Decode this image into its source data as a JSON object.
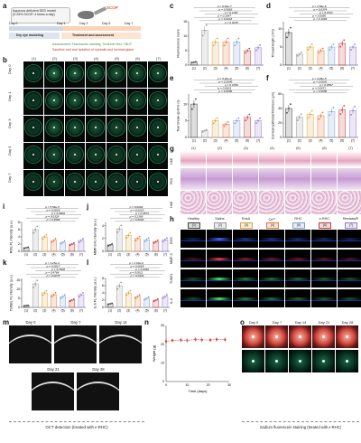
{
  "panel_labels": [
    "a",
    "b",
    "c",
    "d",
    "e",
    "f",
    "g",
    "h",
    "i",
    "j",
    "k",
    "l",
    "m",
    "n",
    "o"
  ],
  "a": {
    "title": "Aqueous deficient DED model",
    "subtitle": "(0.25% SCOP, 4 times a day)",
    "drug": "SCOP",
    "days": [
      "Day 0",
      "Day 1",
      "Day 3",
      "Day 5",
      "Day 7"
    ],
    "phase1": "Dry eye modeling",
    "phase2": "Treatment and assessment",
    "legend1": "Assessment: Fluorescein staining, Schirmer test, TBUT",
    "legend2": "Sacrifice and and isolation of eyeballs and lacrimal gland"
  },
  "b": {
    "groups": [
      "(1)",
      "(2)",
      "(3)",
      "(4)",
      "(5)",
      "(6)",
      "(7)"
    ],
    "rows": [
      "Day 0",
      "Day 1",
      "Day 3",
      "Day 5",
      "Day 7"
    ]
  },
  "c": {
    "ylabel": "Fluorescence score",
    "ticks": [
      "0",
      "5",
      "10",
      "15"
    ],
    "groups": [
      "(1)",
      "(2)",
      "(3)",
      "(4)",
      "(5)",
      "(6)",
      "(7)"
    ],
    "pvals": [
      "p = 8.49e-7",
      "p = 0.5663",
      "p = 0.1047",
      "p = 0.1047",
      "p = 0.0218",
      "p = 0.0018"
    ]
  },
  "d": {
    "ylabel": "Thread length (mm)",
    "ticks": [
      "0",
      "5",
      "10"
    ],
    "groups": [
      "(1)",
      "(2)",
      "(3)",
      "(4)",
      "(5)",
      "(6)",
      "(7)"
    ],
    "pvals": [
      "p = 2.56e-6",
      "p = 0.0374",
      "p = 0.0721",
      "p = 0.0050",
      "p = 0.1603"
    ]
  },
  "e": {
    "ylabel": "Tear break-up time (s)",
    "ticks": [
      "0",
      "5",
      "10"
    ],
    "groups": [
      "(1)",
      "(2)",
      "(3)",
      "(4)",
      "(5)",
      "(6)",
      "(7)"
    ],
    "pvals": [
      "p = 5.92e-9",
      "p = 0.0049",
      "p = 0.0799",
      "p = 0.0623",
      "p = 0.0056"
    ]
  },
  "f": {
    "ylabel": "Corneal epithelial thickness (μm)",
    "ticks": [
      "0",
      "20",
      "40",
      "60"
    ],
    "groups": [
      "(1)",
      "(2)",
      "(3)",
      "(4)",
      "(5)",
      "(6)",
      "(7)"
    ],
    "pvals": [
      "p = 4.99e-5",
      "p = 0.0042",
      "p = 0.6597",
      "p = 0.0071",
      "p = 0.0656"
    ]
  },
  "g": {
    "rows": [
      "H&E",
      "PAS",
      "H&E"
    ],
    "groups": [
      "(1)",
      "(2)",
      "(3)",
      "(4)",
      "(5)",
      "(6)",
      "(7)"
    ]
  },
  "h": {
    "groups": [
      "Healthy",
      "Saline",
      "RosA",
      "Ce³⁺",
      "RHC",
      "ε-RHC",
      "Restasis®"
    ],
    "nums": [
      "(1)",
      "(2)",
      "(3)",
      "(4)",
      "(5)",
      "(6)",
      "(7)"
    ],
    "rows": [
      "ROS",
      "MMP-9",
      "TUNEL",
      "IL-6"
    ],
    "legend_colors": [
      "#444444",
      "#9a9a9a",
      "#d9a441",
      "#e8743b",
      "#7aa0d4",
      "#c43d3d",
      "#9b7bd1"
    ]
  },
  "i": {
    "ylabel": "ROS FL intensity (a.u.)",
    "ticks": [
      "0",
      "2",
      "4",
      "6",
      "8"
    ],
    "groups": [
      "(1)",
      "(2)",
      "(3)",
      "(4)",
      "(5)",
      "(6)",
      "(7)"
    ],
    "pvals": [
      "p = 5.56e-5",
      "p = 0.0029",
      "p = 0.9909",
      "p = 0.0328",
      "p = 0.3566"
    ]
  },
  "j": {
    "ylabel": "MMP-9 FL intensity (a.u.)",
    "ticks": [
      "0",
      "2",
      "4"
    ],
    "groups": [
      "(1)",
      "(2)",
      "(3)",
      "(4)",
      "(5)",
      "(6)",
      "(7)"
    ],
    "pvals": [
      "p = 0.0004",
      "p = 0.0123",
      "p = 0.4571",
      "p = 0.2358",
      "p = 0.8944"
    ]
  },
  "k": {
    "ylabel": "TUNEL FL intensity (a.u.)",
    "ticks": [
      "0",
      "5",
      "10",
      "15"
    ],
    "groups": [
      "(1)",
      "(2)",
      "(3)",
      "(4)",
      "(5)",
      "(6)",
      "(7)"
    ],
    "pvals": [
      "p = 1.25e-4",
      "p = 0.0017",
      "p = 0.7608",
      "p = 0.4764",
      "p = 0.0275"
    ]
  },
  "l": {
    "ylabel": "IL-6 FL intensity (a.u.)",
    "ticks": [
      "0",
      "2",
      "4",
      "6",
      "8"
    ],
    "groups": [
      "(1)",
      "(2)",
      "(3)",
      "(4)",
      "(5)",
      "(6)",
      "(7)"
    ],
    "pvals": [
      "p = 1.03e-6",
      "p = 0.0005",
      "p = 0.0380",
      "p = 0.0011",
      "p = 0.0434"
    ]
  },
  "m": {
    "days": [
      "Day 0",
      "Day 7",
      "Day 14",
      "Day 21",
      "Day 28"
    ],
    "caption": "OCT detection (treated with ε-RHC)"
  },
  "n": {
    "ylabel": "Weight (g)",
    "xlabel": "Time (days)",
    "yticks": [
      "0",
      "10",
      "20",
      "30"
    ],
    "xticks": [
      "0",
      "10",
      "20",
      "30"
    ]
  },
  "o": {
    "days": [
      "Day 0",
      "Day 7",
      "Day 14",
      "Day 21",
      "Day 28"
    ],
    "caption": "Sodium fluorescein staining (treated with ε-RHC)"
  },
  "chart_data": [
    {
      "type": "bar",
      "panel": "c",
      "categories": [
        "(1)",
        "(2)",
        "(3)",
        "(4)",
        "(5)",
        "(6)",
        "(7)"
      ],
      "values": [
        1,
        12,
        8,
        8,
        8,
        5,
        6
      ],
      "ylim": [
        0,
        15
      ]
    },
    {
      "type": "bar",
      "panel": "d",
      "categories": [
        "(1)",
        "(2)",
        "(3)",
        "(4)",
        "(5)",
        "(6)",
        "(7)"
      ],
      "values": [
        9,
        3,
        5,
        4,
        5,
        6,
        5
      ],
      "ylim": [
        0,
        12
      ]
    },
    {
      "type": "bar",
      "panel": "e",
      "categories": [
        "(1)",
        "(2)",
        "(3)",
        "(4)",
        "(5)",
        "(6)",
        "(7)"
      ],
      "values": [
        10,
        2,
        5,
        4,
        5,
        6,
        5
      ],
      "ylim": [
        0,
        13
      ]
    },
    {
      "type": "bar",
      "panel": "f",
      "categories": [
        "(1)",
        "(2)",
        "(3)",
        "(4)",
        "(5)",
        "(6)",
        "(7)"
      ],
      "values": [
        40,
        28,
        32,
        30,
        36,
        38,
        37
      ],
      "ylim": [
        0,
        60
      ]
    },
    {
      "type": "bar",
      "panel": "i",
      "categories": [
        "(1)",
        "(2)",
        "(3)",
        "(4)",
        "(5)",
        "(6)",
        "(7)"
      ],
      "values": [
        1,
        6,
        4,
        3,
        2.5,
        2,
        3
      ],
      "ylim": [
        0,
        8
      ]
    },
    {
      "type": "bar",
      "panel": "j",
      "categories": [
        "(1)",
        "(2)",
        "(3)",
        "(4)",
        "(5)",
        "(6)",
        "(7)"
      ],
      "values": [
        1,
        3.5,
        2.5,
        2,
        1.8,
        1.5,
        1.8
      ],
      "ylim": [
        0,
        4.5
      ]
    },
    {
      "type": "bar",
      "panel": "k",
      "categories": [
        "(1)",
        "(2)",
        "(3)",
        "(4)",
        "(5)",
        "(6)",
        "(7)"
      ],
      "values": [
        1,
        13,
        8,
        7,
        6,
        4,
        7
      ],
      "ylim": [
        0,
        16
      ]
    },
    {
      "type": "bar",
      "panel": "l",
      "categories": [
        "(1)",
        "(2)",
        "(3)",
        "(4)",
        "(5)",
        "(6)",
        "(7)"
      ],
      "values": [
        1,
        6,
        4,
        3,
        2.5,
        2,
        3
      ],
      "ylim": [
        0,
        8
      ]
    },
    {
      "type": "scatter",
      "panel": "n",
      "x": [
        0,
        3,
        7,
        10,
        14,
        17,
        21,
        24,
        28
      ],
      "values": [
        21.5,
        22,
        22.2,
        22,
        22.5,
        22.3,
        22.2,
        22.5,
        22.4
      ],
      "ylim": [
        0,
        30
      ],
      "xlim": [
        0,
        30
      ]
    }
  ]
}
